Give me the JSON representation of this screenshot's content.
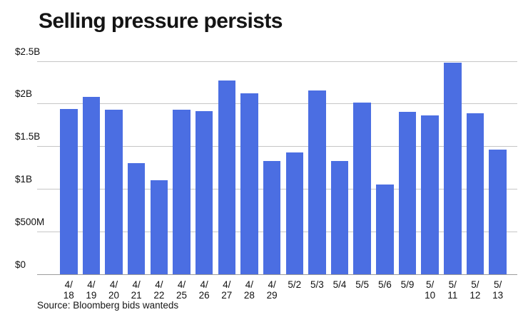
{
  "colors": {
    "bar": "#4b6ee2",
    "gridline": "#c6c6c6",
    "baseline": "#9c9c9c",
    "title_text": "#141414",
    "tick_text": "#111111"
  },
  "chart_data": {
    "type": "bar",
    "title": "Selling pressure persists",
    "source_note": "Source: Bloomberg bids wanteds",
    "unit": "USD (B = billions, M = millions)",
    "categories": [
      "4/18",
      "4/19",
      "4/20",
      "4/21",
      "4/22",
      "4/25",
      "4/26",
      "4/27",
      "4/28",
      "4/29",
      "5/2",
      "5/3",
      "5/4",
      "5/5",
      "5/6",
      "5/9",
      "5/10",
      "5/11",
      "5/12",
      "5/13"
    ],
    "values_billions": [
      1.94,
      2.08,
      1.93,
      1.3,
      1.1,
      1.93,
      1.91,
      2.27,
      2.12,
      1.33,
      1.43,
      2.15,
      1.33,
      2.01,
      1.05,
      1.9,
      1.86,
      2.48,
      1.89,
      1.46
    ],
    "x_tick_lines": [
      [
        "4/",
        "18"
      ],
      [
        "4/",
        "19"
      ],
      [
        "4/",
        "20"
      ],
      [
        "4/",
        "21"
      ],
      [
        "4/",
        "22"
      ],
      [
        "4/",
        "25"
      ],
      [
        "4/",
        "26"
      ],
      [
        "4/",
        "27"
      ],
      [
        "4/",
        "28"
      ],
      [
        "4/",
        "29"
      ],
      [
        "5/2"
      ],
      [
        "5/3"
      ],
      [
        "5/4"
      ],
      [
        "5/5"
      ],
      [
        "5/6"
      ],
      [
        "5/9"
      ],
      [
        "5/",
        "10"
      ],
      [
        "5/",
        "11"
      ],
      [
        "5/",
        "12"
      ],
      [
        "5/",
        "13"
      ]
    ],
    "y_ticks": [
      {
        "label": "$0",
        "value": 0
      },
      {
        "label": "$500M",
        "value": 0.5
      },
      {
        "label": "$1B",
        "value": 1
      },
      {
        "label": "$1.5B",
        "value": 1.5
      },
      {
        "label": "$2B",
        "value": 2
      },
      {
        "label": "$2.5B",
        "value": 2.5
      }
    ],
    "ylim": [
      0,
      2.5
    ],
    "grid": true,
    "legend": false,
    "xlabel": "",
    "ylabel": ""
  }
}
